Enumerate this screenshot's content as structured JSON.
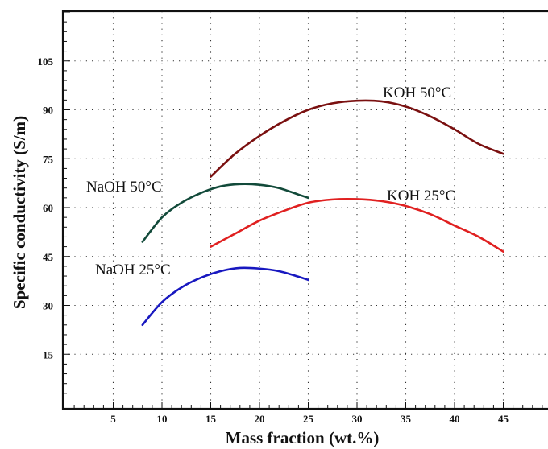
{
  "chart_data": {
    "type": "line",
    "title": "",
    "xlabel": "Mass fraction (wt.%)",
    "ylabel": "Specific conductivity (S/m)",
    "xlim": [
      0,
      50
    ],
    "ylim": [
      0,
      120
    ],
    "x_ticks": [
      "5",
      "10",
      "15",
      "20",
      "25",
      "30",
      "35",
      "40",
      "45"
    ],
    "y_ticks": [
      "15",
      "30",
      "45",
      "60",
      "75",
      "90",
      "105"
    ],
    "grid": "dotted",
    "series": [
      {
        "name": "KOH 50°C",
        "color": "#7a1010",
        "x": [
          15,
          17.5,
          20,
          22.5,
          25,
          27.5,
          30,
          32.5,
          35,
          37.5,
          40,
          42.5,
          45
        ],
        "y": [
          69.5,
          76.5,
          82,
          86.5,
          90,
          92,
          92.8,
          92.6,
          91,
          88,
          84,
          79.5,
          76.5
        ]
      },
      {
        "name": "KOH 25°C",
        "color": "#e02020",
        "x": [
          15,
          17.5,
          20,
          22.5,
          25,
          27.5,
          30,
          32.5,
          35,
          37.5,
          40,
          42.5,
          45
        ],
        "y": [
          48,
          52,
          56,
          59,
          61.5,
          62.5,
          62.6,
          62,
          60.5,
          58,
          54.5,
          51,
          46.5
        ]
      },
      {
        "name": "NaOH 50°C",
        "color": "#124a3a",
        "x": [
          8,
          10,
          12,
          14,
          16,
          18,
          20,
          22,
          24,
          25
        ],
        "y": [
          49.5,
          57,
          61.5,
          64.5,
          66.5,
          67.2,
          67,
          66,
          64,
          63
        ]
      },
      {
        "name": "NaOH 25°C",
        "color": "#1818c0",
        "x": [
          8,
          10,
          12,
          14,
          16,
          18,
          20,
          22,
          24,
          25
        ],
        "y": [
          24,
          31,
          35.5,
          38.5,
          40.5,
          41.5,
          41.3,
          40.5,
          38.8,
          37.8
        ]
      }
    ],
    "annotations": [
      "KOH 50°C",
      "KOH 25°C",
      "NaOH 50°C",
      "NaOH 25°C"
    ]
  }
}
